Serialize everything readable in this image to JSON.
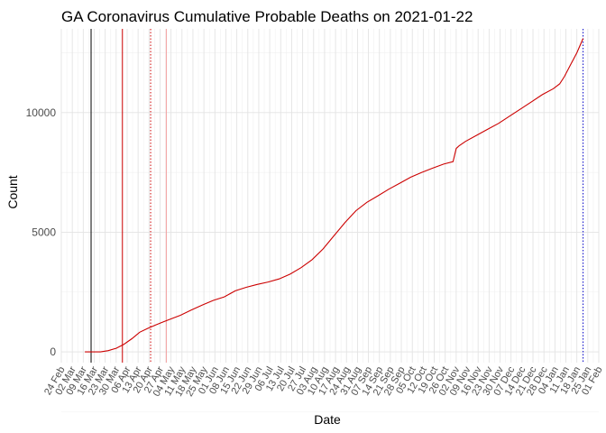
{
  "chart_data": {
    "type": "line",
    "title": "GA Coronavirus Cumulative Probable Deaths on 2021-01-22",
    "xlabel": "Date",
    "ylabel": "Count",
    "xlim": [
      "2020-02-24",
      "2021-02-01"
    ],
    "ylim": [
      -450,
      13500
    ],
    "grid": true,
    "legend": "none",
    "line_color": "#cc0000",
    "y_ticks": [
      0,
      5000,
      10000
    ],
    "x_ticks": [
      {
        "date": "2020-02-24",
        "label": "24 Feb"
      },
      {
        "date": "2020-03-02",
        "label": "02 Mar"
      },
      {
        "date": "2020-03-09",
        "label": "09 Mar"
      },
      {
        "date": "2020-03-16",
        "label": "16 Mar"
      },
      {
        "date": "2020-03-23",
        "label": "23 Mar"
      },
      {
        "date": "2020-03-30",
        "label": "30 Mar"
      },
      {
        "date": "2020-04-06",
        "label": "06 Apr"
      },
      {
        "date": "2020-04-13",
        "label": "13 Apr"
      },
      {
        "date": "2020-04-20",
        "label": "20 Apr"
      },
      {
        "date": "2020-04-27",
        "label": "27 Apr"
      },
      {
        "date": "2020-05-04",
        "label": "04 May"
      },
      {
        "date": "2020-05-11",
        "label": "11 May"
      },
      {
        "date": "2020-05-18",
        "label": "18 May"
      },
      {
        "date": "2020-05-25",
        "label": "25 May"
      },
      {
        "date": "2020-06-01",
        "label": "01 Jun"
      },
      {
        "date": "2020-06-08",
        "label": "08 Jun"
      },
      {
        "date": "2020-06-15",
        "label": "15 Jun"
      },
      {
        "date": "2020-06-22",
        "label": "22 Jun"
      },
      {
        "date": "2020-06-29",
        "label": "29 Jun"
      },
      {
        "date": "2020-07-06",
        "label": "06 Jul"
      },
      {
        "date": "2020-07-13",
        "label": "13 Jul"
      },
      {
        "date": "2020-07-20",
        "label": "20 Jul"
      },
      {
        "date": "2020-07-27",
        "label": "27 Jul"
      },
      {
        "date": "2020-08-03",
        "label": "03 Aug"
      },
      {
        "date": "2020-08-10",
        "label": "10 Aug"
      },
      {
        "date": "2020-08-17",
        "label": "17 Aug"
      },
      {
        "date": "2020-08-24",
        "label": "24 Aug"
      },
      {
        "date": "2020-08-31",
        "label": "31 Aug"
      },
      {
        "date": "2020-09-07",
        "label": "07 Sep"
      },
      {
        "date": "2020-09-14",
        "label": "14 Sep"
      },
      {
        "date": "2020-09-21",
        "label": "21 Sep"
      },
      {
        "date": "2020-09-28",
        "label": "28 Sep"
      },
      {
        "date": "2020-10-05",
        "label": "05 Oct"
      },
      {
        "date": "2020-10-12",
        "label": "12 Oct"
      },
      {
        "date": "2020-10-19",
        "label": "19 Oct"
      },
      {
        "date": "2020-10-26",
        "label": "26 Oct"
      },
      {
        "date": "2020-11-02",
        "label": "02 Nov"
      },
      {
        "date": "2020-11-09",
        "label": "09 Nov"
      },
      {
        "date": "2020-11-16",
        "label": "16 Nov"
      },
      {
        "date": "2020-11-23",
        "label": "23 Nov"
      },
      {
        "date": "2020-11-30",
        "label": "30 Nov"
      },
      {
        "date": "2020-12-07",
        "label": "07 Dec"
      },
      {
        "date": "2020-12-14",
        "label": "14 Dec"
      },
      {
        "date": "2020-12-21",
        "label": "21 Dec"
      },
      {
        "date": "2020-12-28",
        "label": "28 Dec"
      },
      {
        "date": "2021-01-04",
        "label": "04 Jan"
      },
      {
        "date": "2021-01-11",
        "label": "11 Jan"
      },
      {
        "date": "2021-01-18",
        "label": "18 Jan"
      },
      {
        "date": "2021-01-25",
        "label": "25 Jan"
      },
      {
        "date": "2021-02-01",
        "label": "01 Feb"
      }
    ],
    "reference_lines": [
      {
        "date": "2020-03-14",
        "color": "#000000",
        "style": "solid"
      },
      {
        "date": "2020-04-03",
        "color": "#cc0000",
        "style": "solid"
      },
      {
        "date": "2020-04-21",
        "color": "#cc0000",
        "style": "dotted"
      },
      {
        "date": "2020-05-01",
        "color": "#f2a0a0",
        "style": "solid"
      },
      {
        "date": "2021-01-22",
        "color": "#0000cc",
        "style": "dotted"
      }
    ],
    "series": [
      {
        "x": [
          "2020-03-10",
          "2020-03-20",
          "2020-03-25",
          "2020-03-30",
          "2020-04-04",
          "2020-04-09",
          "2020-04-14",
          "2020-04-19",
          "2020-04-24",
          "2020-04-29",
          "2020-05-04",
          "2020-05-10",
          "2020-05-17",
          "2020-05-24",
          "2020-05-31",
          "2020-06-07",
          "2020-06-14",
          "2020-06-21",
          "2020-06-28",
          "2020-07-05",
          "2020-07-12",
          "2020-07-19",
          "2020-07-26",
          "2020-08-02",
          "2020-08-09",
          "2020-08-16",
          "2020-08-23",
          "2020-08-30",
          "2020-09-06",
          "2020-09-13",
          "2020-09-20",
          "2020-09-27",
          "2020-10-04",
          "2020-10-11",
          "2020-10-18",
          "2020-10-25",
          "2020-10-31",
          "2020-11-02",
          "2020-11-04",
          "2020-11-08",
          "2020-11-15",
          "2020-11-22",
          "2020-11-29",
          "2020-12-06",
          "2020-12-13",
          "2020-12-20",
          "2020-12-27",
          "2021-01-03",
          "2021-01-07",
          "2021-01-10",
          "2021-01-14",
          "2021-01-18",
          "2021-01-22"
        ],
        "y": [
          0,
          0,
          50,
          150,
          320,
          550,
          820,
          980,
          1120,
          1250,
          1380,
          1530,
          1750,
          1960,
          2150,
          2300,
          2550,
          2700,
          2820,
          2920,
          3050,
          3250,
          3520,
          3850,
          4300,
          4850,
          5400,
          5900,
          6250,
          6520,
          6800,
          7050,
          7300,
          7500,
          7680,
          7850,
          7950,
          8500,
          8620,
          8800,
          9050,
          9300,
          9550,
          9850,
          10150,
          10450,
          10750,
          11000,
          11200,
          11500,
          12000,
          12500,
          13100
        ]
      }
    ]
  }
}
